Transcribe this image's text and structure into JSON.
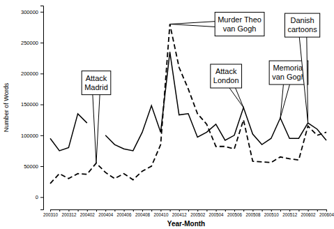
{
  "chart_data": {
    "type": "line",
    "x_label": "Year-Month",
    "y_label": "Number of Words",
    "categories": [
      "200310",
      null,
      "200312",
      null,
      "200402",
      null,
      "200404",
      null,
      "200406",
      null,
      "200408",
      null,
      "200410",
      null,
      "200412",
      null,
      "200502",
      null,
      "200504",
      null,
      "200506",
      null,
      "200508",
      null,
      "200510",
      null,
      "200512",
      null,
      "200602",
      null,
      "200604"
    ],
    "series": [
      {
        "color": "#000000",
        "line_style": "solid",
        "values": [
          95000,
          75000,
          80000,
          135000,
          120000,
          null,
          100000,
          85000,
          78000,
          75000,
          105000,
          148000,
          105000,
          235000,
          133000,
          135000,
          97000,
          105000,
          118000,
          92000,
          100000,
          145000,
          102000,
          85000,
          95000,
          128000,
          95000,
          95000,
          120000,
          110000,
          92000
        ]
      },
      {
        "color": "#000000",
        "line_style": "dashed",
        "values": [
          22000,
          38000,
          30000,
          38000,
          37000,
          55000,
          40000,
          30000,
          38000,
          28000,
          42000,
          50000,
          85000,
          280000,
          210000,
          175000,
          135000,
          118000,
          82000,
          82000,
          78000,
          125000,
          58000,
          57000,
          56000,
          65000,
          62000,
          60000,
          115000,
          100000,
          105000
        ]
      }
    ],
    "ylim": [
      -20000,
      310000
    ],
    "yticks": [
      0,
      50000,
      100000,
      150000,
      200000,
      250000,
      300000
    ],
    "grid": false,
    "annotations": [
      {
        "text": [
          "Attack",
          "Madrid"
        ]
      },
      {
        "text": [
          "Murder Theo",
          "van Gogh"
        ]
      },
      {
        "text": [
          "Attack",
          "London"
        ]
      },
      {
        "text": [
          "Memorial",
          "van Gogh"
        ]
      },
      {
        "text": [
          "Danish",
          "cartoons"
        ]
      }
    ]
  }
}
